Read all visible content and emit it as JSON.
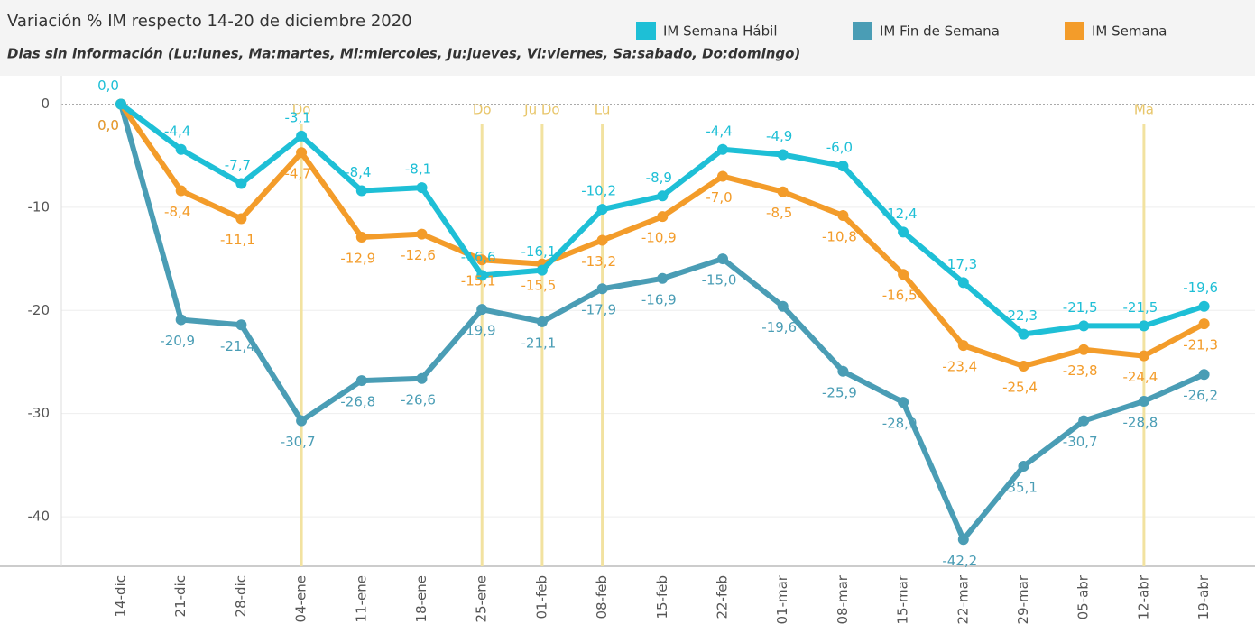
{
  "chart_data": {
    "type": "line",
    "title": "Variación % IM respecto 14-20 de diciembre 2020",
    "subtitle": "Dias sin información (Lu:lunes, Ma:martes, Mi:miercoles, Ju:jueves, Vi:viernes, Sa:sabado, Do:domingo)",
    "categories": [
      "14-dic",
      "21-dic",
      "28-dic",
      "04-ene",
      "11-ene",
      "18-ene",
      "25-ene",
      "01-feb",
      "08-feb",
      "15-feb",
      "22-feb",
      "01-mar",
      "08-mar",
      "15-mar",
      "22-mar",
      "29-mar",
      "05-abr",
      "12-abr",
      "19-abr"
    ],
    "series": [
      {
        "name": "IM Semana Hábil",
        "color": "#1ebfd6",
        "values": [
          0,
          -4.4,
          -7.7,
          -3.1,
          -8.4,
          -8.1,
          -16.6,
          -16.1,
          -10.2,
          -8.9,
          -4.4,
          -4.9,
          -6.0,
          -12.4,
          -17.3,
          -22.3,
          -21.5,
          -21.5,
          -19.6
        ],
        "value_labels": [
          "0,0",
          "-4,4",
          "-7,7",
          "-3,1",
          "-8,4",
          "-8,1",
          "-16,6",
          "-16,1",
          "-10,2",
          "-8,9",
          "-4,4",
          "-4,9",
          "-6,0",
          "-12,4",
          "-17,3",
          "-22,3",
          "-21,5",
          "-21,5",
          "-19,6"
        ]
      },
      {
        "name": "IM Fin de Semana",
        "color": "#4a9db5",
        "values": [
          0,
          -20.9,
          -21.4,
          -30.7,
          -26.8,
          -26.6,
          -19.9,
          -21.1,
          -17.9,
          -16.9,
          -15.0,
          -19.6,
          -25.9,
          -28.9,
          -42.2,
          -35.1,
          -30.7,
          -28.8,
          -26.2
        ],
        "value_labels": [
          "0,0",
          "-20,9",
          "-21,4",
          "-30,7",
          "-26,8",
          "-26,6",
          "-19,9",
          "-21,1",
          "-17,9",
          "-16,9",
          "-15,0",
          "-19,6",
          "-25,9",
          "-28,9",
          "-42,2",
          "-35,1",
          "-30,7",
          "-28,8",
          "-26,2"
        ]
      },
      {
        "name": "IM Semana",
        "color": "#f39c2a",
        "values": [
          0,
          -8.4,
          -11.1,
          -4.7,
          -12.9,
          -12.6,
          -15.1,
          -15.5,
          -13.2,
          -10.9,
          -7.0,
          -8.5,
          -10.8,
          -16.5,
          -23.4,
          -25.4,
          -23.8,
          -24.4,
          -21.3
        ],
        "value_labels": [
          "0,0",
          "-8,4",
          "-11,1",
          "-4,7",
          "-12,9",
          "-12,6",
          "-15,1",
          "-15,5",
          "-13,2",
          "-10,9",
          "-7,0",
          "-8,5",
          "-10,8",
          "-16,5",
          "-23,4",
          "-25,4",
          "-23,8",
          "-24,4",
          "-21,3"
        ]
      }
    ],
    "reference_lines": [
      {
        "category": "04-ene",
        "label": "Do"
      },
      {
        "category": "25-ene",
        "label": "Do"
      },
      {
        "category": "01-feb",
        "label": "Ju Do"
      },
      {
        "category": "08-feb",
        "label": "Lu"
      },
      {
        "category": "12-abr",
        "label": "Ma"
      }
    ],
    "ylim": [
      -44.8,
      2.4
    ],
    "yticks": [
      0,
      -10,
      -20,
      -30,
      -40
    ],
    "grid": true
  }
}
